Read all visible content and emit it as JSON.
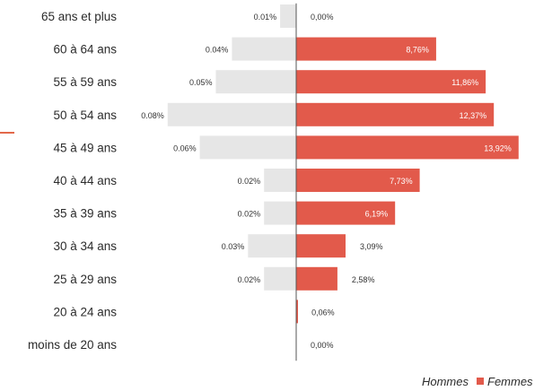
{
  "chart_data": {
    "type": "bar",
    "orientation": "horizontal",
    "layout": "population-pyramid",
    "categories": [
      "65 ans et plus",
      "60 à 64 ans",
      "55 à 59 ans",
      "50 à 54 ans",
      "45 à 49 ans",
      "40 à 44 ans",
      "35 à 39 ans",
      "30 à 34 ans",
      "25 à 29 ans",
      "20 à 24 ans",
      "moins de 20 ans"
    ],
    "series": [
      {
        "name": "Hommes",
        "color": "#e6e6e6",
        "direction": "left",
        "values": [
          0.01,
          0.04,
          0.05,
          0.08,
          0.06,
          0.02,
          0.02,
          0.03,
          0.02,
          null,
          null
        ],
        "labels": [
          "0.01%",
          "0.04%",
          "0.05%",
          "0.08%",
          "0.06%",
          "0.02%",
          "0.02%",
          "0.03%",
          "0.02%",
          null,
          null
        ]
      },
      {
        "name": "Femmes",
        "color": "#e25a4b",
        "direction": "right",
        "values": [
          0.0,
          8.76,
          11.86,
          12.37,
          13.92,
          7.73,
          6.19,
          3.09,
          2.58,
          0.06,
          0.0
        ],
        "labels": [
          "0,00%",
          "8,76%",
          "11,86%",
          "12,37%",
          "13,92%",
          "7,73%",
          "6,19%",
          "3,09%",
          "2,58%",
          "0,06%",
          "0,00%"
        ]
      }
    ],
    "unit": "%",
    "legend_position": "bottom-right",
    "grid": false
  },
  "legend": {
    "items": [
      {
        "label": "Hommes",
        "color": "#e6e6e6"
      },
      {
        "label": "Femmes",
        "color": "#e25a4b"
      }
    ]
  },
  "colors": {
    "accent_mark": "#e2684a",
    "axis": "#555555"
  }
}
